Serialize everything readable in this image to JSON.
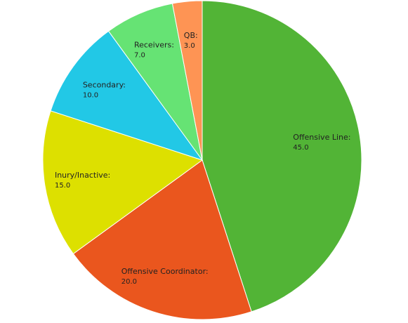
{
  "chart_data": {
    "type": "pie",
    "categories": [
      "Offensive Line:",
      "Offensive Coordinator:",
      "Inury/Inactive:",
      "Secondary:",
      "Receivers:",
      "QB:"
    ],
    "values": [
      45,
      20,
      15,
      10,
      7,
      3
    ],
    "value_labels": [
      "45.0",
      "20.0",
      "15.0",
      "10.0",
      "7.0",
      "3.0"
    ],
    "colors": [
      "#52b436",
      "#ea561e",
      "#dde000",
      "#22c8e6",
      "#66e374",
      "#fe9454"
    ]
  }
}
